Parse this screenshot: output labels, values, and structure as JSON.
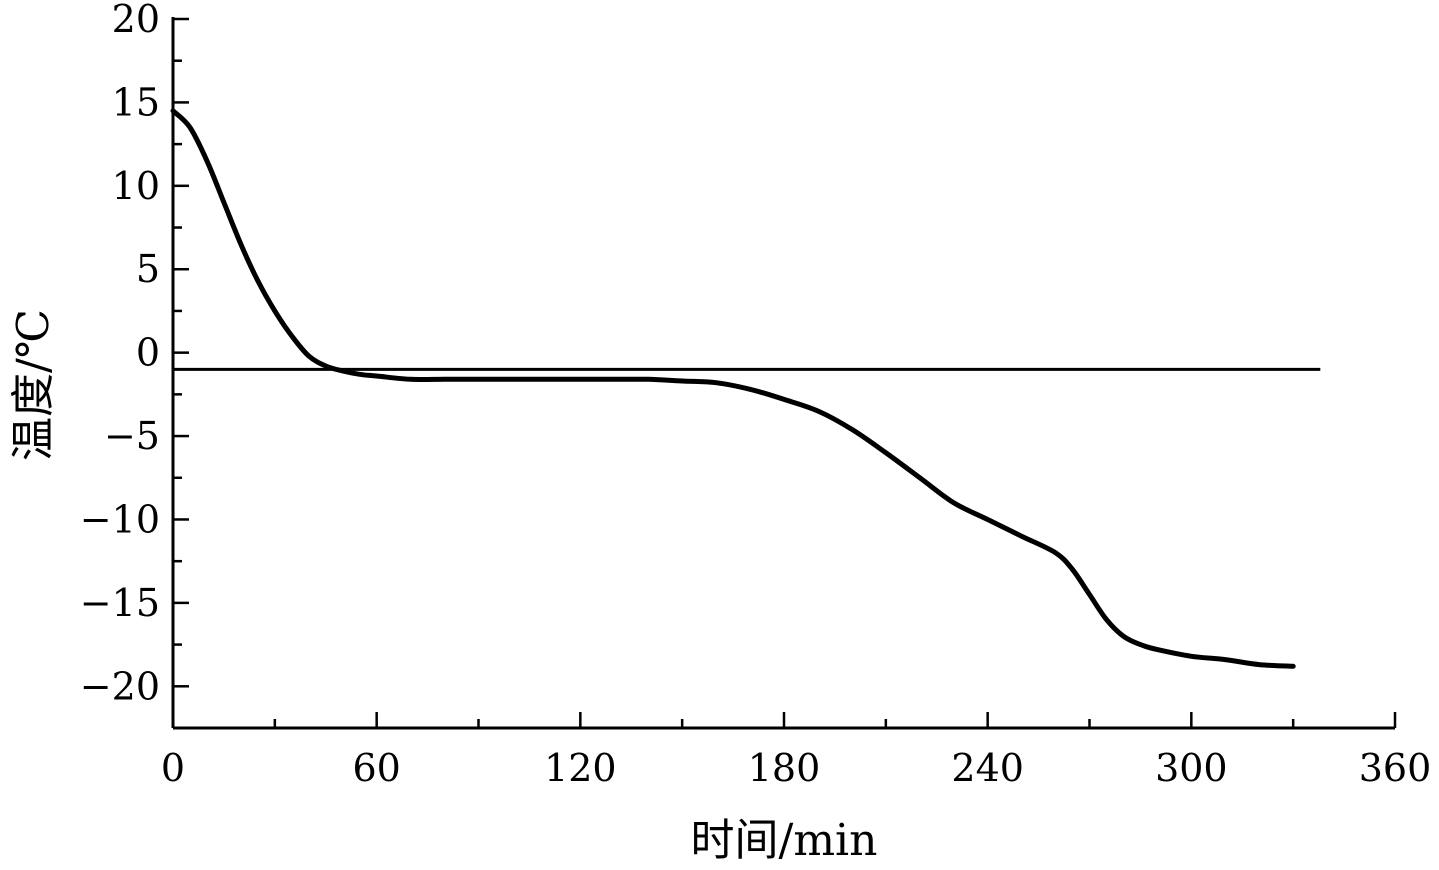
{
  "chart_data": {
    "type": "line",
    "xlabel": "时间/min",
    "ylabel": "温度/℃",
    "xlim": [
      0,
      360
    ],
    "ylim": [
      -22.5,
      20
    ],
    "xticks": [
      "0",
      "60",
      "120",
      "180",
      "240",
      "300",
      "360"
    ],
    "yticks": [
      "20",
      "15",
      "10",
      "5",
      "0",
      "−5",
      "−10",
      "−15",
      "−20"
    ],
    "grid": false,
    "series": [
      {
        "color": "#000000",
        "x": [
          0,
          5,
          10,
          15,
          20,
          25,
          30,
          35,
          40,
          45,
          50,
          55,
          60,
          70,
          80,
          90,
          100,
          110,
          120,
          130,
          140,
          150,
          160,
          170,
          180,
          190,
          200,
          210,
          220,
          230,
          240,
          250,
          260,
          265,
          270,
          275,
          280,
          285,
          290,
          300,
          310,
          320,
          330
        ],
        "y": [
          14.5,
          13.5,
          11.5,
          9.0,
          6.5,
          4.3,
          2.5,
          1.0,
          -0.2,
          -0.8,
          -1.1,
          -1.3,
          -1.4,
          -1.6,
          -1.6,
          -1.6,
          -1.6,
          -1.6,
          -1.6,
          -1.6,
          -1.6,
          -1.7,
          -1.8,
          -2.2,
          -2.8,
          -3.5,
          -4.6,
          -6.0,
          -7.5,
          -9.0,
          -10.0,
          -11.0,
          -12.0,
          -13.0,
          -14.5,
          -16.0,
          -17.0,
          -17.5,
          -17.8,
          -18.2,
          -18.4,
          -18.7,
          -18.8
        ]
      }
    ],
    "reference_lines": [
      {
        "axis": "y",
        "value": -1,
        "x_start": 0,
        "x_end": 338
      }
    ]
  }
}
